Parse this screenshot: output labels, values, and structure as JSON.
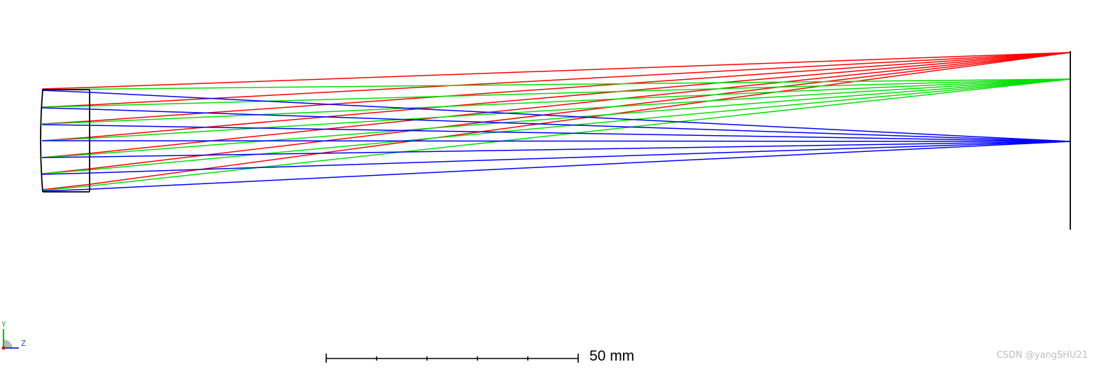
{
  "scale_bar": {
    "label": "50 mm",
    "length_mm": 50,
    "tick_count": 5
  },
  "axis_indicator": {
    "y_label": "Y",
    "z_label": "Z",
    "y_color": "#20b020",
    "z_color": "#1f3fd6",
    "x_color": "#e01010"
  },
  "watermark": "CSDN @yangSHU21",
  "ray_fields": [
    {
      "color": "#ff0000"
    },
    {
      "color": "#00e000"
    },
    {
      "color": "#0000ff"
    }
  ],
  "element_color": "#000000"
}
